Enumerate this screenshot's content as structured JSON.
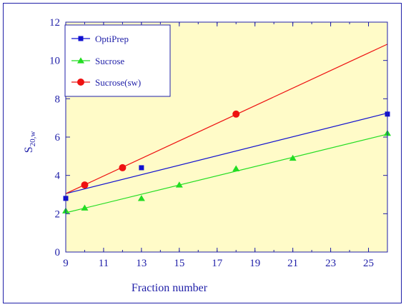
{
  "chart_data": {
    "type": "scatter",
    "title": "",
    "xlabel": "Fraction number",
    "ylabel_main": "S",
    "ylabel_sub": "20,w",
    "xlim": [
      9,
      26
    ],
    "ylim": [
      0,
      12
    ],
    "xticks": [
      9,
      11,
      13,
      15,
      17,
      19,
      21,
      23,
      25
    ],
    "yticks": [
      0,
      2,
      4,
      6,
      8,
      10,
      12
    ],
    "legend_position": "top-left",
    "series": [
      {
        "name": "OptiPrep",
        "color": "#1010d0",
        "marker": "square",
        "points": [
          [
            9,
            2.8
          ],
          [
            13,
            4.4
          ],
          [
            26,
            7.2
          ]
        ],
        "fit": [
          [
            9,
            3.05
          ],
          [
            26,
            7.25
          ]
        ]
      },
      {
        "name": "Sucrose",
        "color": "#22dd22",
        "marker": "triangle",
        "points": [
          [
            9,
            2.15
          ],
          [
            10,
            2.3
          ],
          [
            13,
            2.8
          ],
          [
            15,
            3.5
          ],
          [
            18,
            4.35
          ],
          [
            21,
            4.9
          ],
          [
            26,
            6.2
          ]
        ],
        "fit": [
          [
            9,
            2.05
          ],
          [
            26,
            6.15
          ]
        ]
      },
      {
        "name": "Sucrose(sw)",
        "color": "#ee1111",
        "marker": "circle",
        "points": [
          [
            10,
            3.5
          ],
          [
            12,
            4.4
          ],
          [
            18,
            7.2
          ]
        ],
        "fit": [
          [
            9,
            3.05
          ],
          [
            26,
            10.85
          ]
        ]
      }
    ]
  }
}
